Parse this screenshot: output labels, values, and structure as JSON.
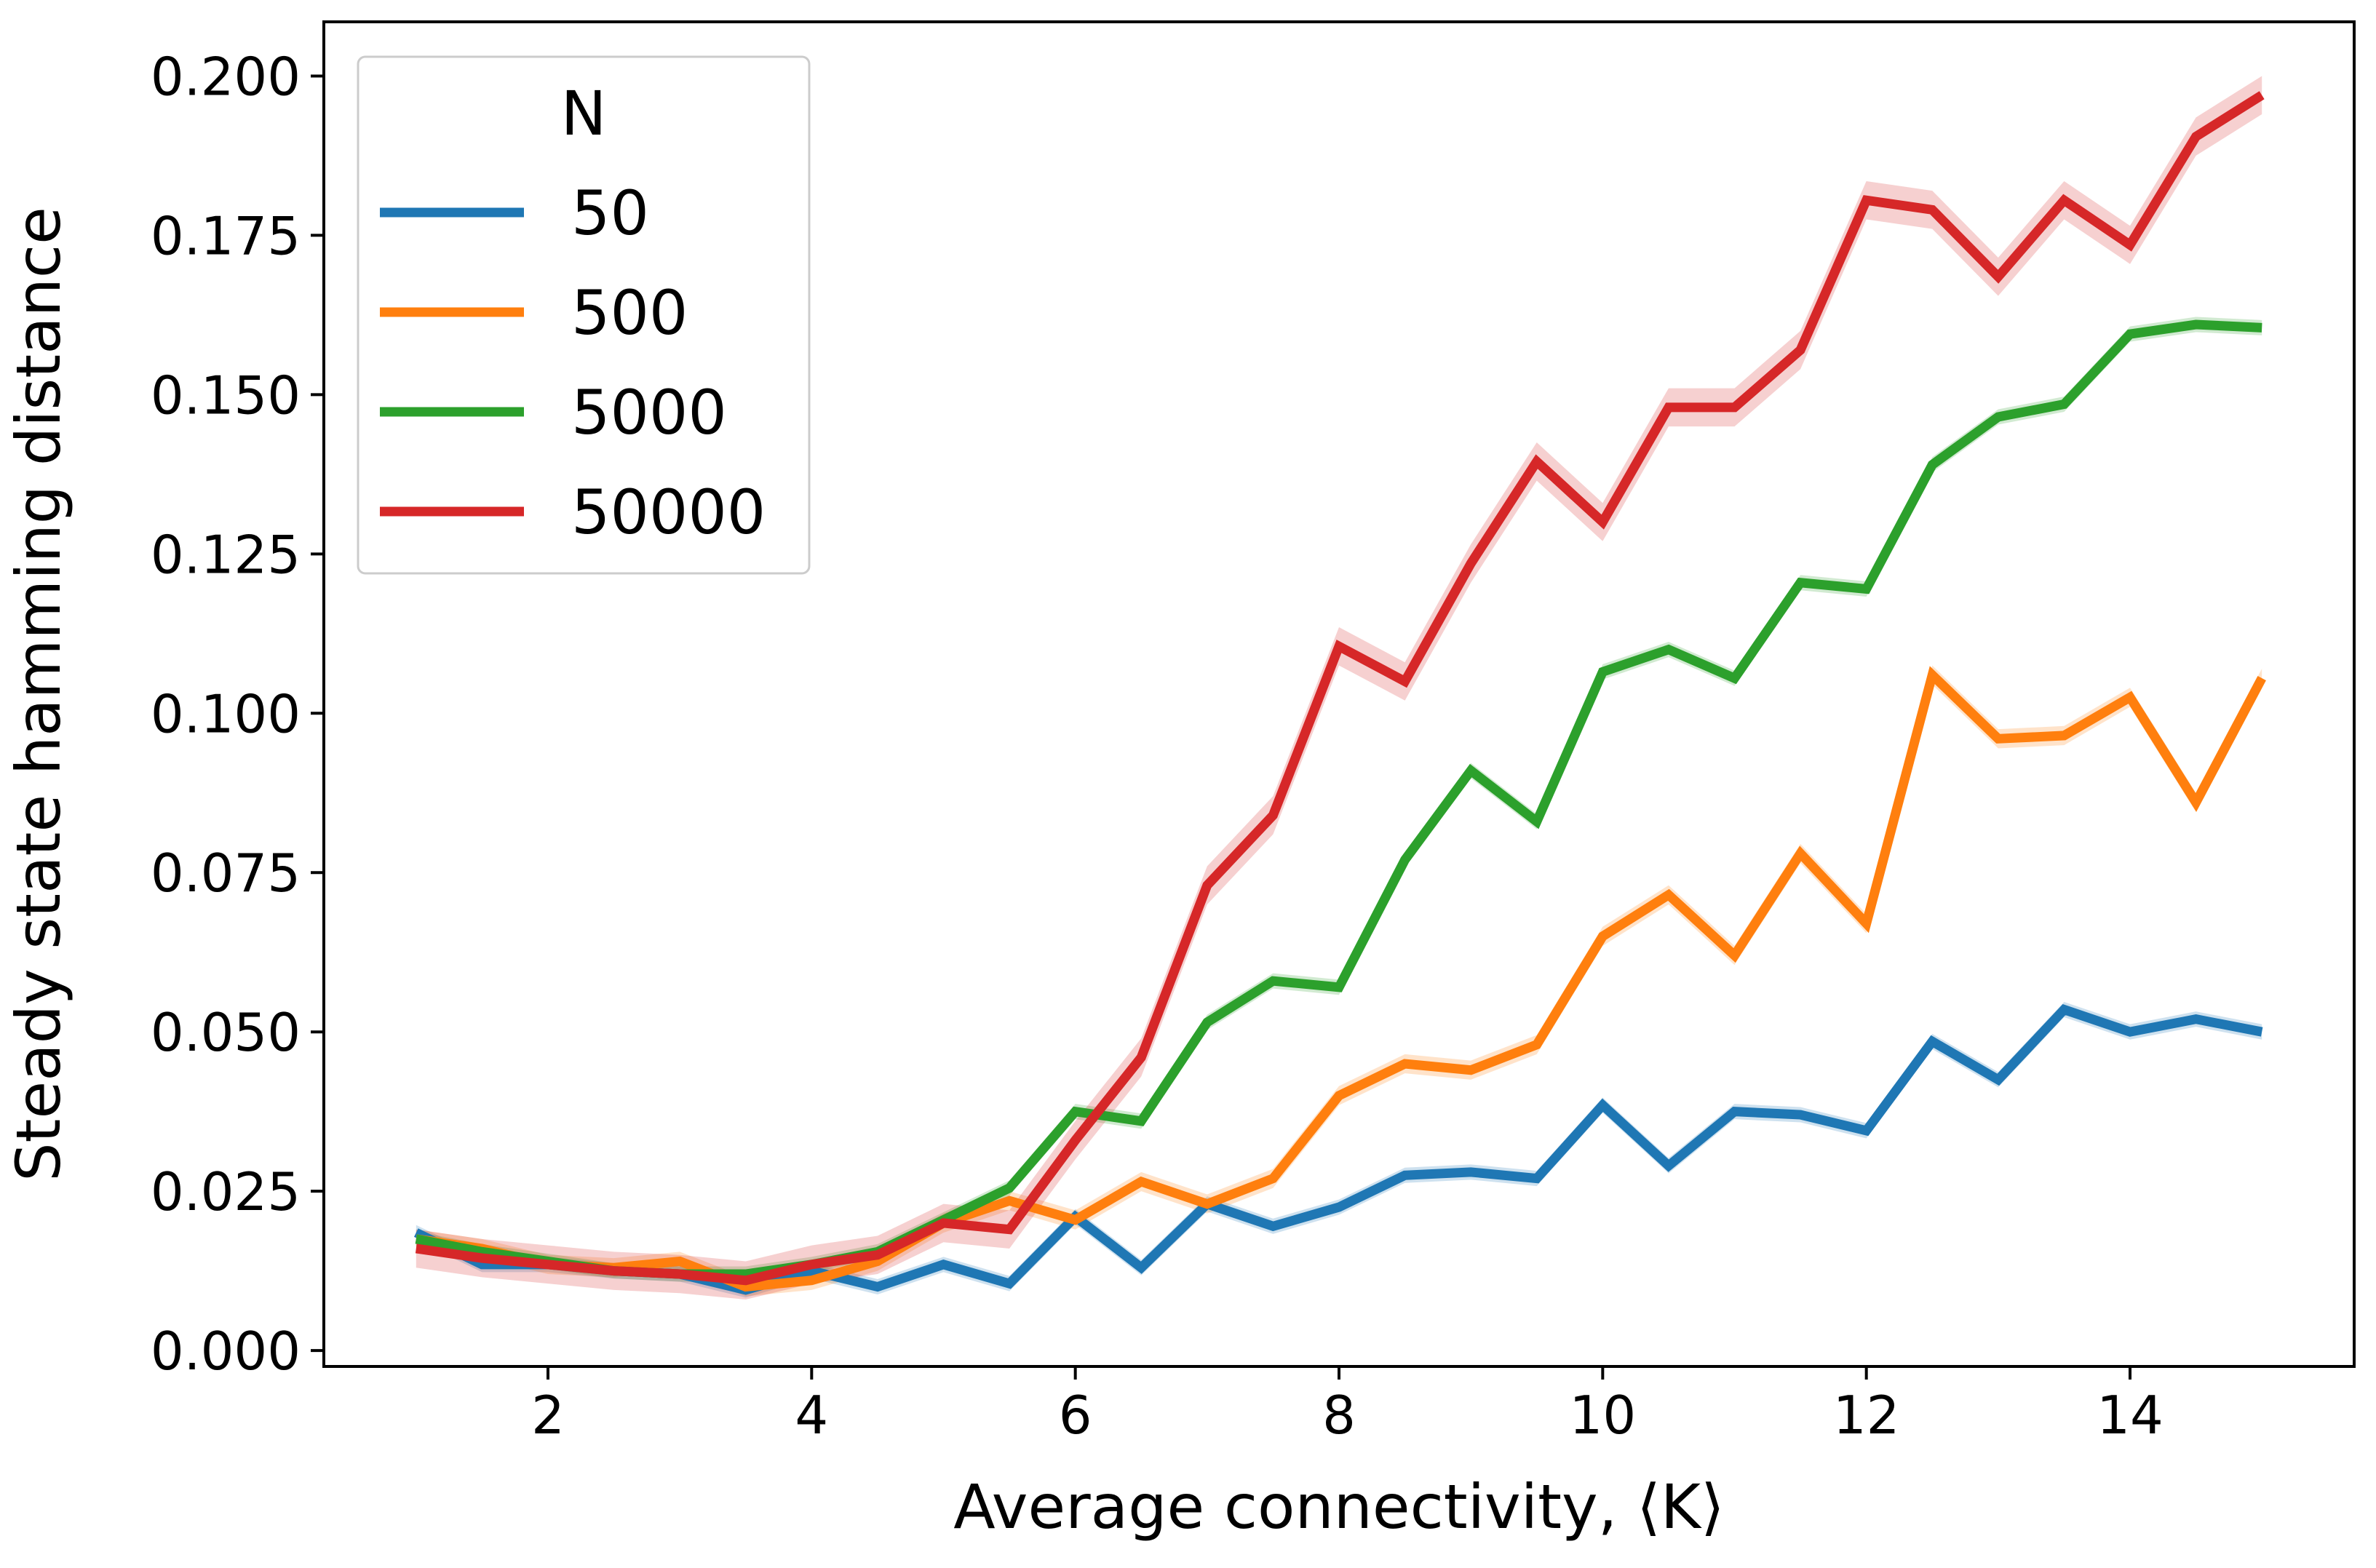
{
  "chart_data": {
    "type": "line",
    "xlabel": "Average connectivity, ⟨K⟩",
    "ylabel": "Steady state hamming distance",
    "xlim": [
      0.3,
      15.7
    ],
    "ylim": [
      -0.0025,
      0.2085
    ],
    "xticks": [
      2,
      4,
      6,
      8,
      10,
      12,
      14
    ],
    "xtick_labels": [
      "2",
      "4",
      "6",
      "8",
      "10",
      "12",
      "14"
    ],
    "yticks": [
      0.0,
      0.025,
      0.05,
      0.075,
      0.1,
      0.125,
      0.15,
      0.175,
      0.2
    ],
    "ytick_labels": [
      "0.000",
      "0.025",
      "0.050",
      "0.075",
      "0.100",
      "0.125",
      "0.150",
      "0.175",
      "0.200"
    ],
    "grid": false,
    "legend": {
      "title": "N",
      "placement": "top-left"
    },
    "x": [
      1,
      1.5,
      2,
      2.5,
      3,
      3.5,
      4,
      4.5,
      5,
      5.5,
      6,
      6.5,
      7,
      7.5,
      8,
      8.5,
      9,
      9.5,
      10,
      10.5,
      11,
      11.5,
      12,
      12.5,
      13,
      13.5,
      14,
      14.5,
      15
    ],
    "series": [
      {
        "name": "50",
        "color": "#1f77b4",
        "values": [
          0.0185,
          0.0135,
          0.0135,
          0.0125,
          0.012,
          0.0095,
          0.0125,
          0.01,
          0.0135,
          0.0105,
          0.021,
          0.013,
          0.023,
          0.0195,
          0.0225,
          0.0275,
          0.028,
          0.027,
          0.0385,
          0.029,
          0.0375,
          0.037,
          0.0345,
          0.0485,
          0.0425,
          0.0535,
          0.05,
          0.052,
          0.05
        ],
        "band": 0.0012
      },
      {
        "name": "500",
        "color": "#ff7f0e",
        "values": [
          0.0175,
          0.016,
          0.0135,
          0.013,
          0.014,
          0.01,
          0.011,
          0.014,
          0.02,
          0.0235,
          0.0205,
          0.0265,
          0.023,
          0.027,
          0.04,
          0.045,
          0.044,
          0.048,
          0.065,
          0.0715,
          0.062,
          0.078,
          0.067,
          0.106,
          0.096,
          0.0965,
          0.1025,
          0.086,
          0.1055
        ],
        "band": 0.0015
      },
      {
        "name": "5000",
        "color": "#2ca02c",
        "values": [
          0.0175,
          0.0155,
          0.014,
          0.0125,
          0.012,
          0.012,
          0.0135,
          0.0155,
          0.0205,
          0.0255,
          0.0375,
          0.036,
          0.0515,
          0.058,
          0.057,
          0.077,
          0.091,
          0.083,
          0.1065,
          0.11,
          0.1055,
          0.1205,
          0.1195,
          0.139,
          0.1465,
          0.1485,
          0.1595,
          0.161,
          0.1605
        ],
        "band": 0.0012
      },
      {
        "name": "50000",
        "color": "#d62728",
        "values": [
          0.016,
          0.0145,
          0.0135,
          0.0125,
          0.012,
          0.011,
          0.0135,
          0.015,
          0.02,
          0.019,
          0.033,
          0.046,
          0.073,
          0.084,
          0.1105,
          0.105,
          0.1235,
          0.1395,
          0.13,
          0.148,
          0.148,
          0.157,
          0.1805,
          0.179,
          0.1685,
          0.1805,
          0.1735,
          0.1905,
          0.197
        ],
        "band": 0.003
      }
    ]
  }
}
